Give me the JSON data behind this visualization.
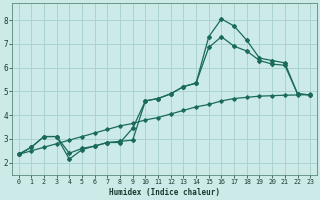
{
  "xlabel": "Humidex (Indice chaleur)",
  "background_color": "#cceae7",
  "grid_color": "#aad4d0",
  "line_color": "#1a6b5a",
  "xlim": [
    -0.5,
    23.5
  ],
  "ylim": [
    1.5,
    8.7
  ],
  "yticks": [
    2,
    3,
    4,
    5,
    6,
    7,
    8
  ],
  "xticks": [
    0,
    1,
    2,
    3,
    4,
    5,
    6,
    7,
    8,
    9,
    10,
    11,
    12,
    13,
    14,
    15,
    16,
    17,
    18,
    19,
    20,
    21,
    22,
    23
  ],
  "x_straight": [
    0,
    1,
    2,
    3,
    4,
    5,
    6,
    7,
    8,
    9,
    10,
    11,
    12,
    13,
    14,
    15,
    16,
    17,
    18,
    19,
    20,
    21,
    22,
    23
  ],
  "y_straight": [
    2.35,
    2.5,
    2.65,
    2.8,
    2.95,
    3.1,
    3.25,
    3.4,
    3.55,
    3.65,
    3.8,
    3.9,
    4.05,
    4.2,
    4.35,
    4.45,
    4.6,
    4.7,
    4.75,
    4.8,
    4.82,
    4.84,
    4.85,
    4.87
  ],
  "x_high": [
    0,
    1,
    2,
    3,
    4,
    5,
    6,
    7,
    8,
    9,
    10,
    11,
    12,
    13,
    14,
    15,
    16,
    17,
    18,
    19,
    20,
    21,
    22,
    23
  ],
  "y_high": [
    2.35,
    2.65,
    3.1,
    3.1,
    2.15,
    2.55,
    2.7,
    2.85,
    2.85,
    3.45,
    4.6,
    4.7,
    4.9,
    5.2,
    5.35,
    7.3,
    8.05,
    7.75,
    7.15,
    6.4,
    6.3,
    6.2,
    4.9,
    4.85
  ],
  "x_mod": [
    0,
    1,
    2,
    3,
    4,
    5,
    6,
    7,
    8,
    9,
    10,
    11,
    12,
    13,
    14,
    15,
    16,
    17,
    18,
    19,
    20,
    21,
    22,
    23
  ],
  "y_mod": [
    2.35,
    2.65,
    3.1,
    3.1,
    2.4,
    2.6,
    2.7,
    2.85,
    2.9,
    2.95,
    4.6,
    4.7,
    4.9,
    5.2,
    5.35,
    6.85,
    7.3,
    6.9,
    6.7,
    6.3,
    6.15,
    6.1,
    4.9,
    4.85
  ]
}
